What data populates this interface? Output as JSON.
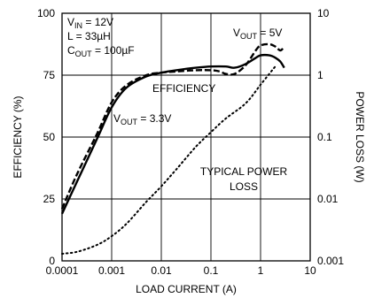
{
  "chart_data": {
    "type": "line",
    "x_scale": "log",
    "xlabel": "LOAD CURRENT (A)",
    "ylabel_left": "EFFICIENCY (%)",
    "ylabel_right": "POWER LOSS (W)",
    "xlim": [
      0.0001,
      10
    ],
    "ylim_left": [
      0,
      100
    ],
    "ylim_right": [
      0.001,
      10
    ],
    "y_right_scale": "log",
    "x_ticks": [
      "0.0001",
      "0.001",
      "0.01",
      "0.1",
      "1",
      "10"
    ],
    "y_left_ticks": [
      "0",
      "25",
      "50",
      "75",
      "100"
    ],
    "y_right_ticks": [
      "0.001",
      "0.01",
      "0.1",
      "1",
      "10"
    ],
    "grid": true,
    "conditions": [
      {
        "main": "V",
        "sub": "IN",
        "rest": " = 12V"
      },
      {
        "main": "L = 33µH",
        "sub": "",
        "rest": ""
      },
      {
        "main": "C",
        "sub": "OUT",
        "rest": " = 100µF"
      }
    ],
    "annotations": {
      "efficiency": "EFFICIENCY",
      "vout5": {
        "main": "V",
        "sub": "OUT",
        "rest": " = 5V"
      },
      "vout33": {
        "main": "V",
        "sub": "OUT",
        "rest": " = 3.3V"
      },
      "typical_loss_line1": "TYPICAL POWER",
      "typical_loss_line2": "LOSS"
    },
    "series": [
      {
        "style": "solid",
        "axis": "left",
        "x": [
          0.0001,
          0.0002,
          0.0005,
          0.001,
          0.002,
          0.005,
          0.01,
          0.02,
          0.05,
          0.1,
          0.2,
          0.3,
          0.5,
          0.8,
          1.0,
          1.5,
          2.0,
          2.5,
          3.0
        ],
        "y": [
          19,
          32,
          49,
          62,
          70,
          74.5,
          76,
          77,
          78,
          78.5,
          78.5,
          78,
          79.5,
          82,
          83,
          83,
          82,
          80.5,
          78
        ]
      },
      {
        "style": "dashed",
        "axis": "left",
        "x": [
          0.0001,
          0.0002,
          0.0005,
          0.001,
          0.002,
          0.005,
          0.01,
          0.02,
          0.05,
          0.1,
          0.15,
          0.2,
          0.3,
          0.5,
          0.8,
          1.0,
          1.5,
          2.0,
          2.5,
          3.0
        ],
        "y": [
          21,
          35,
          51,
          64,
          71,
          75,
          76,
          76.5,
          77,
          77,
          76.5,
          75.5,
          75.5,
          79,
          85,
          87,
          87.5,
          86.5,
          85,
          86.5
        ]
      },
      {
        "style": "dotted",
        "axis": "right",
        "x": [
          0.0001,
          0.0002,
          0.0005,
          0.001,
          0.002,
          0.005,
          0.01,
          0.02,
          0.05,
          0.1,
          0.2,
          0.5,
          1.0,
          2.0
        ],
        "y": [
          0.0013,
          0.0014,
          0.0018,
          0.0025,
          0.004,
          0.009,
          0.016,
          0.03,
          0.07,
          0.12,
          0.2,
          0.35,
          0.7,
          1.4
        ]
      }
    ]
  }
}
